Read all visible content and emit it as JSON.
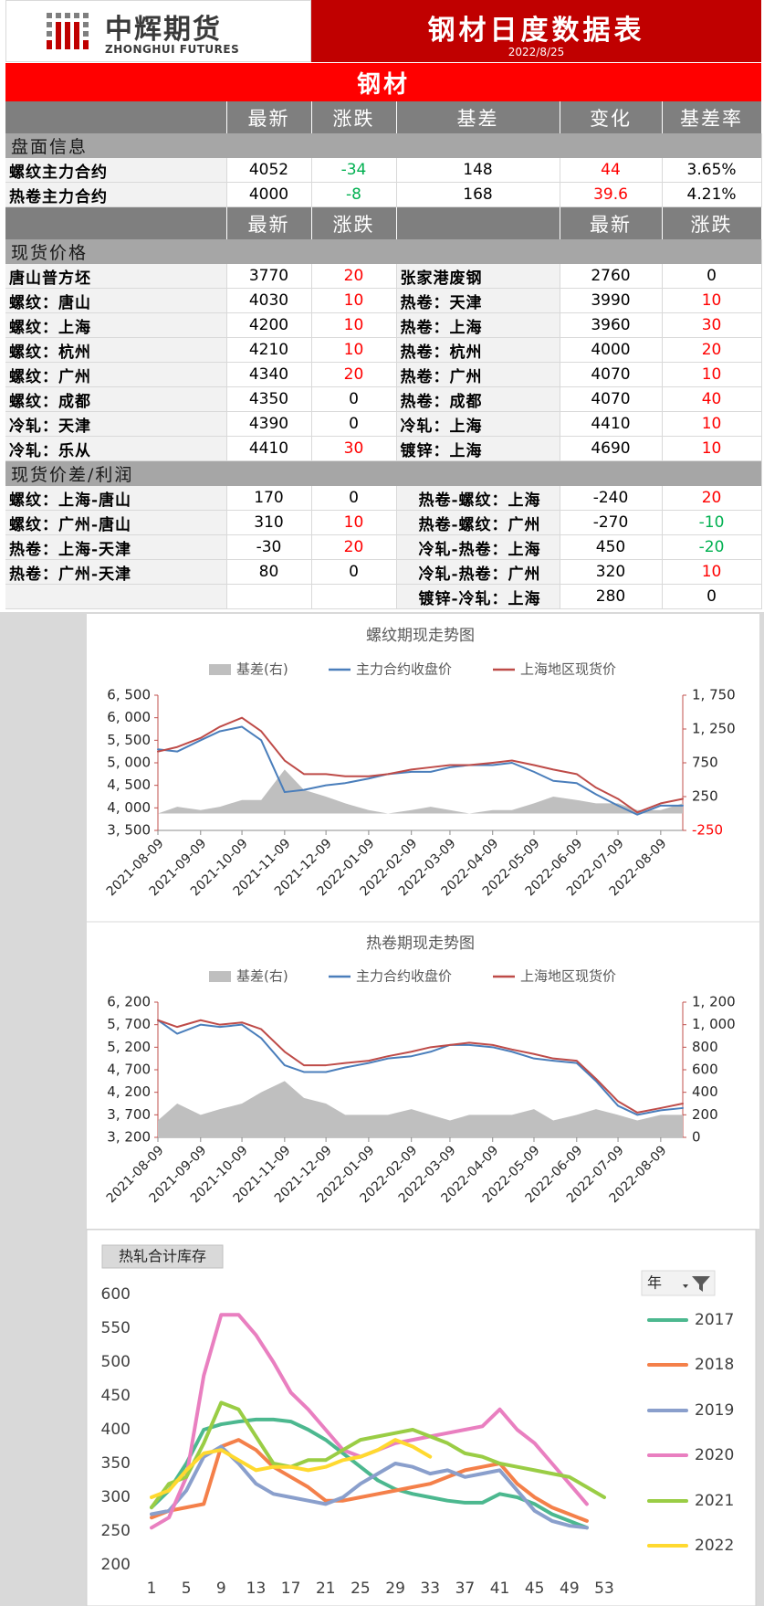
{
  "header": {
    "logo_cn": "中辉期货",
    "logo_en": "ZHONGHUI FUTURES",
    "title": "钢材日度数据表",
    "date": "2022/8/25"
  },
  "section_title": "钢材",
  "futures": {
    "columns": [
      "最新",
      "涨跌",
      "基差",
      "变化",
      "基差率"
    ],
    "label": "盘面信息",
    "rows": [
      {
        "name": "螺纹主力合约",
        "values": [
          4052,
          -34,
          148,
          44,
          "3.65%"
        ]
      },
      {
        "name": "热卷主力合约",
        "values": [
          4000,
          -8,
          168,
          39.6,
          "4.21%"
        ]
      }
    ]
  },
  "spot": {
    "columns": [
      "最新",
      "涨跌",
      "最新",
      "涨跌"
    ],
    "label": "现货价格",
    "rows": [
      [
        "唐山普方坯",
        3770,
        20,
        "张家港废钢",
        2760,
        0
      ],
      [
        "螺纹：唐山",
        4030,
        10,
        "热卷：天津",
        3990,
        10
      ],
      [
        "螺纹：上海",
        4200,
        10,
        "热卷：上海",
        3960,
        30
      ],
      [
        "螺纹：杭州",
        4210,
        10,
        "热卷：杭州",
        4000,
        20
      ],
      [
        "螺纹：广州",
        4340,
        20,
        "热卷：广州",
        4070,
        10
      ],
      [
        "螺纹：成都",
        4350,
        0,
        "热卷：成都",
        4070,
        40
      ],
      [
        "冷轧：天津",
        4390,
        0,
        "冷轧：上海",
        4410,
        10
      ],
      [
        "冷轧：乐从",
        4410,
        30,
        "镀锌：上海",
        4690,
        10
      ]
    ]
  },
  "spreads": {
    "label": "现货价差/利润",
    "rows": [
      [
        "螺纹：上海-唐山",
        170,
        0,
        "热卷-螺纹：上海",
        -240,
        20
      ],
      [
        "螺纹：广州-唐山",
        310,
        10,
        "热卷-螺纹：广州",
        -270,
        -10
      ],
      [
        "热卷：上海-天津",
        -30,
        20,
        "冷轧-热卷：上海",
        450,
        -20
      ],
      [
        "热卷：广州-天津",
        80,
        0,
        "冷轧-热卷：广州",
        320,
        10
      ],
      [
        null,
        null,
        null,
        "镀锌-冷轧：上海",
        280,
        0
      ]
    ]
  },
  "chart_data": [
    {
      "type": "line",
      "title": "螺纹期现走势图",
      "x": [
        "2021-08-09",
        "2021-08-23",
        "2021-09-09",
        "2021-09-23",
        "2021-10-09",
        "2021-10-23",
        "2021-11-09",
        "2021-11-23",
        "2021-12-09",
        "2021-12-23",
        "2022-01-09",
        "2022-01-23",
        "2022-02-09",
        "2022-02-23",
        "2022-03-09",
        "2022-03-23",
        "2022-04-09",
        "2022-04-23",
        "2022-05-09",
        "2022-05-23",
        "2022-06-09",
        "2022-06-23",
        "2022-07-09",
        "2022-07-23",
        "2022-08-09",
        "2022-08-25"
      ],
      "xlim": [
        "2021-08-09",
        "2022-08-25"
      ],
      "xticks": [
        "2021-08-09",
        "2021-09-09",
        "2021-10-09",
        "2021-11-09",
        "2021-12-09",
        "2022-01-09",
        "2022-02-09",
        "2022-03-09",
        "2022-04-09",
        "2022-05-09",
        "2022-06-09",
        "2022-07-09",
        "2022-08-09"
      ],
      "ylim": [
        3500,
        6500
      ],
      "yticks": [
        {
          "value": 3500,
          "label": "3, 500"
        },
        {
          "value": 4000,
          "label": "4, 000"
        },
        {
          "value": 4500,
          "label": "4, 500"
        },
        {
          "value": 5000,
          "label": "5, 000"
        },
        {
          "value": 5500,
          "label": "5, 500"
        },
        {
          "value": 6000,
          "label": "6, 000"
        },
        {
          "value": 6500,
          "label": "6, 500"
        }
      ],
      "y2lim": [
        -250,
        1750
      ],
      "y2ticks": [
        -250,
        250,
        750,
        {
          "value": 1250,
          "label": "1, 250"
        },
        {
          "value": 1750,
          "label": "1, 750"
        }
      ],
      "series": [
        {
          "name": "基差(右)",
          "type": "area",
          "axis": "y2",
          "color": "#bfbfbf",
          "values": [
            0,
            100,
            50,
            100,
            200,
            200,
            650,
            350,
            250,
            150,
            50,
            0,
            50,
            100,
            50,
            0,
            50,
            50,
            150,
            250,
            200,
            150,
            150,
            50,
            50,
            150
          ]
        },
        {
          "name": "主力合约收盘价",
          "color": "#4a7ebb",
          "values": [
            5300,
            5250,
            5500,
            5700,
            5800,
            5500,
            4350,
            4400,
            4500,
            4550,
            4650,
            4750,
            4800,
            4800,
            4900,
            4950,
            4950,
            5000,
            4800,
            4600,
            4550,
            4300,
            4050,
            3850,
            4050,
            4050
          ]
        },
        {
          "name": "上海地区现货价",
          "color": "#be4b48",
          "values": [
            5250,
            5350,
            5550,
            5800,
            6000,
            5700,
            5050,
            4750,
            4750,
            4700,
            4700,
            4750,
            4850,
            4900,
            4950,
            4950,
            5000,
            5050,
            4950,
            4850,
            4750,
            4450,
            4200,
            3900,
            4100,
            4200
          ]
        }
      ]
    },
    {
      "type": "line",
      "title": "热卷期现走势图",
      "x": [
        "2021-08-09",
        "2021-08-23",
        "2021-09-09",
        "2021-09-23",
        "2021-10-09",
        "2021-10-23",
        "2021-11-09",
        "2021-11-23",
        "2021-12-09",
        "2021-12-23",
        "2022-01-09",
        "2022-01-23",
        "2022-02-09",
        "2022-02-23",
        "2022-03-09",
        "2022-03-23",
        "2022-04-09",
        "2022-04-23",
        "2022-05-09",
        "2022-05-23",
        "2022-06-09",
        "2022-06-23",
        "2022-07-09",
        "2022-07-23",
        "2022-08-09",
        "2022-08-25"
      ],
      "xlim": [
        "2021-08-09",
        "2022-08-25"
      ],
      "xticks": [
        "2021-08-09",
        "2021-09-09",
        "2021-10-09",
        "2021-11-09",
        "2021-12-09",
        "2022-01-09",
        "2022-02-09",
        "2022-03-09",
        "2022-04-09",
        "2022-05-09",
        "2022-06-09",
        "2022-07-09",
        "2022-08-09"
      ],
      "ylim": [
        3200,
        6200
      ],
      "yticks": [
        {
          "value": 3200,
          "label": "3, 200"
        },
        {
          "value": 3700,
          "label": "3, 700"
        },
        {
          "value": 4200,
          "label": "4, 200"
        },
        {
          "value": 4700,
          "label": "4, 700"
        },
        {
          "value": 5200,
          "label": "5, 200"
        },
        {
          "value": 5700,
          "label": "5, 700"
        },
        {
          "value": 6200,
          "label": "6, 200"
        }
      ],
      "y2lim": [
        0,
        1200
      ],
      "y2ticks": [
        0,
        200,
        400,
        600,
        800,
        {
          "value": 1000,
          "label": "1, 000"
        },
        {
          "value": 1200,
          "label": "1, 200"
        }
      ],
      "series": [
        {
          "name": "基差(右)",
          "type": "area",
          "axis": "y2",
          "color": "#bfbfbf",
          "values": [
            150,
            300,
            200,
            250,
            300,
            400,
            500,
            350,
            300,
            200,
            200,
            200,
            250,
            200,
            150,
            200,
            200,
            200,
            250,
            150,
            200,
            250,
            200,
            150,
            200,
            200
          ]
        },
        {
          "name": "主力合约收盘价",
          "color": "#4a7ebb",
          "values": [
            5800,
            5500,
            5700,
            5650,
            5700,
            5400,
            4800,
            4650,
            4650,
            4750,
            4850,
            4950,
            5000,
            5100,
            5250,
            5250,
            5200,
            5100,
            4950,
            4900,
            4850,
            4450,
            3900,
            3700,
            3800,
            3850
          ]
        },
        {
          "name": "上海地区现货价",
          "color": "#be4b48",
          "values": [
            5800,
            5650,
            5800,
            5700,
            5750,
            5600,
            5100,
            4800,
            4800,
            4850,
            4900,
            5000,
            5100,
            5200,
            5250,
            5300,
            5250,
            5150,
            5050,
            4950,
            4900,
            4500,
            4000,
            3750,
            3850,
            3950
          ]
        }
      ]
    },
    {
      "type": "line",
      "title": "热轧合计库存",
      "legend_title": "年",
      "x": [
        1,
        3,
        5,
        7,
        9,
        11,
        13,
        15,
        17,
        19,
        21,
        23,
        25,
        27,
        29,
        31,
        33,
        35,
        37,
        39,
        41,
        43,
        45,
        47,
        49,
        51,
        53
      ],
      "xlim": [
        1,
        53
      ],
      "xticks": [
        1,
        5,
        9,
        13,
        17,
        21,
        25,
        29,
        33,
        37,
        41,
        45,
        49,
        53
      ],
      "ylim": [
        200,
        600
      ],
      "yticks": [
        200,
        250,
        300,
        350,
        400,
        450,
        500,
        550,
        600
      ],
      "series": [
        {
          "name": "2017",
          "color": "#4cb88f",
          "values": [
            285,
            310,
            350,
            400,
            408,
            412,
            415,
            415,
            412,
            400,
            385,
            365,
            345,
            325,
            312,
            305,
            300,
            295,
            292,
            292,
            305,
            300,
            290,
            275,
            265,
            255,
            null
          ]
        },
        {
          "name": "2018",
          "color": "#f4804a",
          "values": [
            270,
            280,
            285,
            290,
            375,
            385,
            370,
            345,
            330,
            315,
            295,
            295,
            300,
            305,
            310,
            315,
            320,
            330,
            340,
            345,
            350,
            320,
            300,
            285,
            275,
            265,
            null
          ]
        },
        {
          "name": "2019",
          "color": "#8a9fcc",
          "values": [
            275,
            280,
            310,
            360,
            375,
            350,
            320,
            305,
            300,
            295,
            290,
            300,
            320,
            335,
            350,
            345,
            335,
            340,
            330,
            335,
            340,
            310,
            280,
            265,
            258,
            255,
            null
          ]
        },
        {
          "name": "2020",
          "color": "#e97fc0",
          "values": [
            255,
            270,
            330,
            480,
            570,
            570,
            540,
            500,
            455,
            430,
            400,
            370,
            360,
            370,
            380,
            385,
            390,
            395,
            400,
            405,
            430,
            400,
            380,
            350,
            320,
            290,
            null
          ]
        },
        {
          "name": "2021",
          "color": "#9acd45",
          "values": [
            285,
            320,
            330,
            380,
            440,
            430,
            390,
            350,
            345,
            355,
            355,
            370,
            385,
            390,
            395,
            400,
            390,
            380,
            365,
            360,
            350,
            345,
            340,
            335,
            330,
            315,
            300
          ]
        },
        {
          "name": "2022",
          "color": "#ffd92f",
          "values": [
            300,
            310,
            340,
            365,
            370,
            355,
            340,
            345,
            345,
            340,
            345,
            355,
            360,
            370,
            385,
            375,
            360,
            null,
            null,
            null,
            null,
            null,
            null,
            null,
            null,
            null,
            null
          ]
        }
      ]
    }
  ]
}
